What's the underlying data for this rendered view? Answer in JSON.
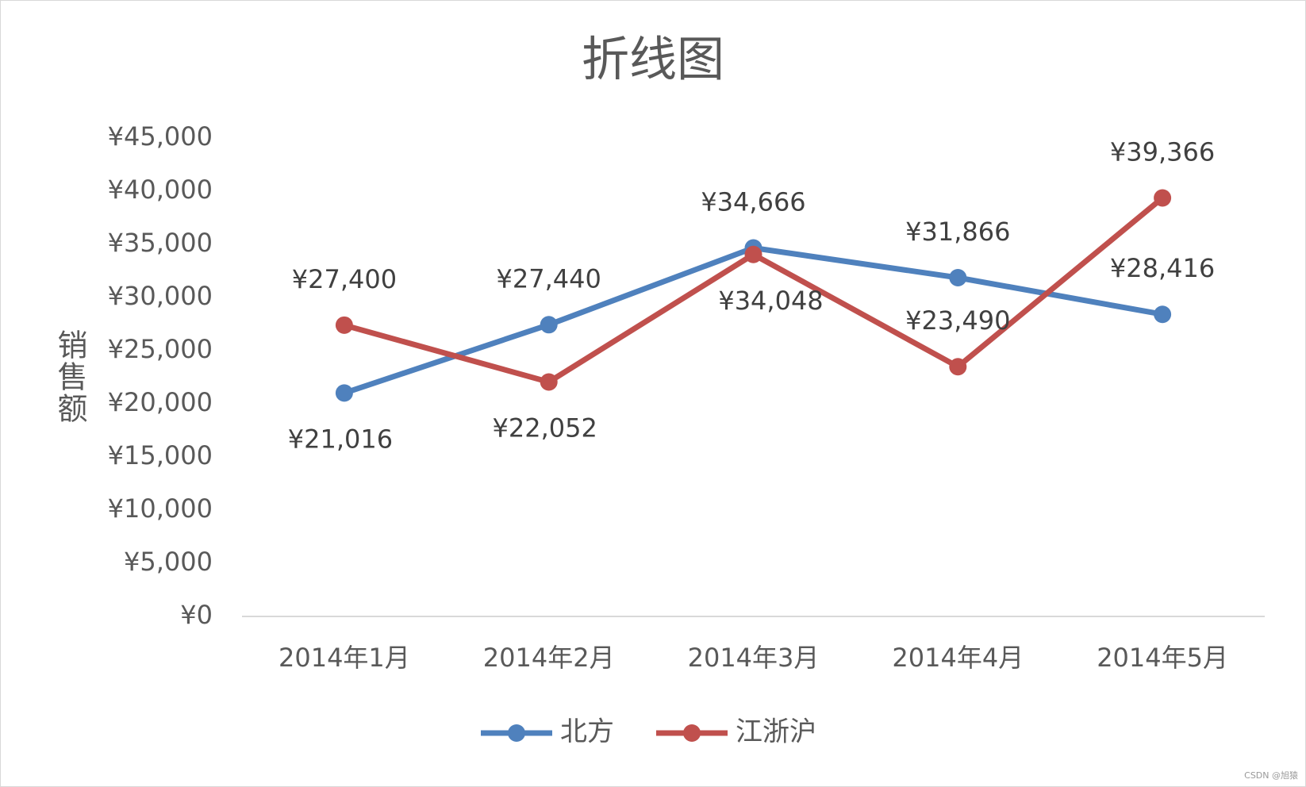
{
  "chart_data": {
    "type": "line",
    "title": "折线图",
    "y_label": "销售额",
    "categories": [
      "2014年1月",
      "2014年2月",
      "2014年3月",
      "2014年4月",
      "2014年5月"
    ],
    "series": [
      {
        "name": "北方",
        "color": "#4f81bd",
        "values": [
          21016,
          27440,
          34666,
          31866,
          28416
        ],
        "value_labels": [
          "¥21,016",
          "¥27,440",
          "¥34,666",
          "¥31,866",
          "¥28,416"
        ]
      },
      {
        "name": "江浙沪",
        "color": "#c0504d",
        "values": [
          27400,
          22052,
          34048,
          23490,
          39366
        ],
        "value_labels": [
          "¥27,400",
          "¥22,052",
          "¥34,048",
          "¥23,490",
          "¥39,366"
        ]
      }
    ],
    "ylim": [
      0,
      45000
    ],
    "yticks": [
      {
        "value": 0,
        "label": "¥0"
      },
      {
        "value": 5000,
        "label": "¥5,000"
      },
      {
        "value": 10000,
        "label": "¥10,000"
      },
      {
        "value": 15000,
        "label": "¥15,000"
      },
      {
        "value": 20000,
        "label": "¥20,000"
      },
      {
        "value": 25000,
        "label": "¥25,000"
      },
      {
        "value": 30000,
        "label": "¥30,000"
      },
      {
        "value": 35000,
        "label": "¥35,000"
      },
      {
        "value": 40000,
        "label": "¥40,000"
      },
      {
        "value": 45000,
        "label": "¥45,000"
      }
    ],
    "grid": false,
    "legend": "bottom",
    "watermark": "CSDN @旭猿"
  }
}
